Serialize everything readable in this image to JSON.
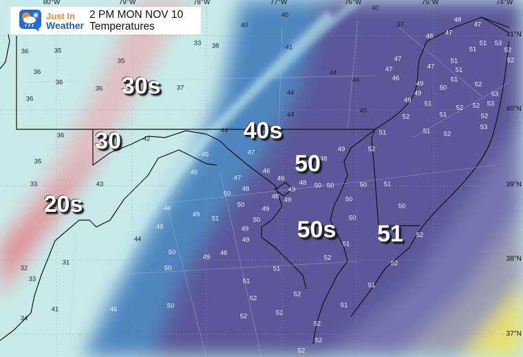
{
  "header": {
    "logo_line1": "Just In",
    "logo_line2": "Weather",
    "title": "2 PM MON NOV 10",
    "subtitle": "Temperatures"
  },
  "longitude_labels": [
    "80°W",
    "79°W",
    "78°W",
    "77°W",
    "76°W",
    "75°W",
    "74°W"
  ],
  "latitude_labels": [
    "41°N",
    "40°N",
    "39°N",
    "38°N",
    "37°N"
  ],
  "region_labels": [
    "30s",
    "30",
    "40s",
    "50",
    "20s",
    "50s",
    "51"
  ],
  "station_temps": [
    40,
    40,
    40,
    37,
    33,
    38,
    36,
    35,
    35,
    36,
    36,
    36,
    36,
    37,
    41,
    44,
    44,
    44,
    46,
    45,
    44,
    42,
    36,
    35,
    33,
    43,
    44,
    32,
    33,
    31,
    41,
    34,
    48,
    47,
    48,
    47,
    51,
    53,
    51,
    52,
    52,
    51,
    51,
    47,
    51,
    49,
    50,
    52,
    53,
    49,
    49,
    51,
    53,
    52,
    52,
    51,
    52,
    53,
    51,
    52,
    47,
    47,
    46,
    45,
    45,
    47,
    47,
    48,
    46,
    49,
    48,
    49,
    48,
    49,
    50,
    50,
    50,
    50,
    50,
    49,
    48,
    49,
    50,
    50,
    51,
    49,
    49,
    50,
    50,
    49,
    49,
    46,
    44,
    49,
    50,
    46,
    50,
    51,
    52,
    52,
    51,
    52,
    52,
    52,
    52,
    52,
    51,
    51,
    52,
    52,
    51,
    52,
    51,
    50,
    51,
    52,
    52
  ],
  "colors": {
    "cold_pink": "#e6a0a4",
    "cool_cyan": "#c8eaea",
    "mid_blue": "#4f86c0",
    "mild_purple": "#5a5898",
    "offshore": "#8588b8",
    "warm_yellow": "#e6e070",
    "brand_orange": "#f08a24",
    "brand_blue": "#1f5fb0"
  },
  "icons": [
    "weather-logo-icon"
  ]
}
